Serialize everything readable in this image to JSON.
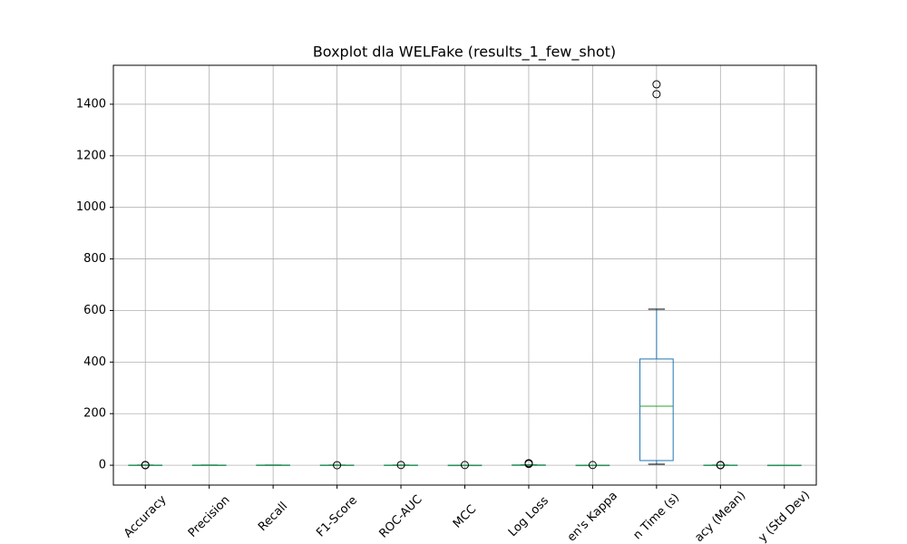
{
  "chart_data": {
    "type": "boxplot",
    "title": "Boxplot dla WELFake (results_1_few_shot)",
    "categories": [
      "Accuracy",
      "Precision",
      "Recall",
      "F1-Score",
      "ROC-AUC",
      "MCC",
      "Log Loss",
      "en's Kappa",
      "n Time (s)",
      "acy (Mean)",
      "y (Std Dev)"
    ],
    "boxes": [
      {
        "min": 0.45,
        "q1": 0.5,
        "median": 0.52,
        "q3": 0.55,
        "max": 0.6,
        "outliers": [
          0.9,
          0.1
        ]
      },
      {
        "min": 0.3,
        "q1": 0.5,
        "median": 0.55,
        "q3": 0.6,
        "max": 0.8,
        "outliers": []
      },
      {
        "min": 0.1,
        "q1": 0.4,
        "median": 0.5,
        "q3": 0.7,
        "max": 1,
        "outliers": []
      },
      {
        "min": 0.2,
        "q1": 0.45,
        "median": 0.5,
        "q3": 0.6,
        "max": 0.8,
        "outliers": [
          0
        ]
      },
      {
        "min": 0.4,
        "q1": 0.5,
        "median": 0.52,
        "q3": 0.56,
        "max": 0.6,
        "outliers": [
          0.9
        ]
      },
      {
        "min": -0.1,
        "q1": 0,
        "median": 0.05,
        "q3": 0.1,
        "max": 0.2,
        "outliers": [
          0.8
        ]
      },
      {
        "min": 0.6,
        "q1": 0.7,
        "median": 0.8,
        "q3": 1,
        "max": 1.2,
        "outliers": [
          5,
          8
        ]
      },
      {
        "min": -0.1,
        "q1": 0,
        "median": 0.05,
        "q3": 0.1,
        "max": 0.2,
        "outliers": [
          0.8
        ]
      },
      {
        "min": 4,
        "q1": 18,
        "median": 229,
        "q3": 412,
        "max": 605,
        "outliers": [
          1439,
          1477
        ]
      },
      {
        "min": 0.45,
        "q1": 0.5,
        "median": 0.52,
        "q3": 0.55,
        "max": 0.6,
        "outliers": [
          0.9,
          0.1
        ]
      },
      {
        "min": 0.01,
        "q1": 0.03,
        "median": 0.05,
        "q3": 0.08,
        "max": 0.12,
        "outliers": []
      }
    ],
    "box_color": "#1f77b4",
    "median_color": "#2ca02c",
    "ylim": [
      -77,
      1551
    ],
    "yticks": [
      0,
      200,
      400,
      600,
      800,
      1000,
      1200,
      1400
    ],
    "grid": true
  }
}
